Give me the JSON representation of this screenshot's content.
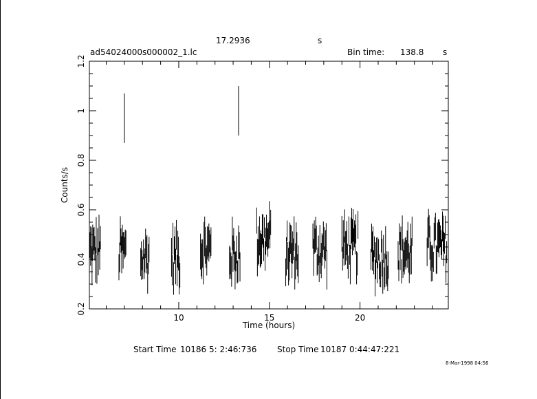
{
  "header": {
    "value": "17.2936",
    "value_unit": "s",
    "file_name": "ad54024000s000002_1.lc",
    "bin_label": "Bin time:",
    "bin_value": "138.8",
    "bin_unit": "s"
  },
  "footer": {
    "start_label": "Start Time",
    "start_value": "10186  5: 2:46:736",
    "stop_label": "Stop Time",
    "stop_value": "10187  0:44:47:221",
    "timestamp": "8-Mar-1998 04:56"
  },
  "chart_data": {
    "type": "scatter",
    "title": "ad54024000s000002_1.lc",
    "xlabel": "Time (hours)",
    "ylabel": "Counts/s",
    "xlim": [
      5.07,
      24.87
    ],
    "ylim": [
      0.2,
      1.2
    ],
    "x_ticks": [
      10,
      15,
      20
    ],
    "y_ticks": [
      0.2,
      0.4,
      0.6,
      0.8,
      1.0,
      1.2
    ],
    "y_tick_labels": [
      "0.2",
      "0.4",
      "0.6",
      "0.8",
      "1",
      "1.2"
    ],
    "grid": false,
    "error_bars": true,
    "segments": [
      {
        "start": 5.1,
        "end": 5.7,
        "center": 0.43
      },
      {
        "start": 6.7,
        "end": 7.1,
        "center": 0.43
      },
      {
        "start": 7.9,
        "end": 8.4,
        "center": 0.41
      },
      {
        "start": 9.6,
        "end": 10.1,
        "center": 0.41
      },
      {
        "start": 11.2,
        "end": 11.8,
        "center": 0.44
      },
      {
        "start": 12.8,
        "end": 13.4,
        "center": 0.42
      },
      {
        "start": 14.3,
        "end": 15.1,
        "center": 0.48
      },
      {
        "start": 15.9,
        "end": 16.6,
        "center": 0.43
      },
      {
        "start": 17.4,
        "end": 18.2,
        "center": 0.44
      },
      {
        "start": 19.0,
        "end": 19.9,
        "center": 0.45
      },
      {
        "start": 20.6,
        "end": 21.6,
        "center": 0.41
      },
      {
        "start": 22.1,
        "end": 22.9,
        "center": 0.43
      },
      {
        "start": 23.7,
        "end": 24.8,
        "center": 0.45
      }
    ],
    "outliers": [
      {
        "x": 7.0,
        "y": 0.97,
        "err": 0.1
      },
      {
        "x": 13.3,
        "y": 1.0,
        "err": 0.1
      }
    ]
  }
}
